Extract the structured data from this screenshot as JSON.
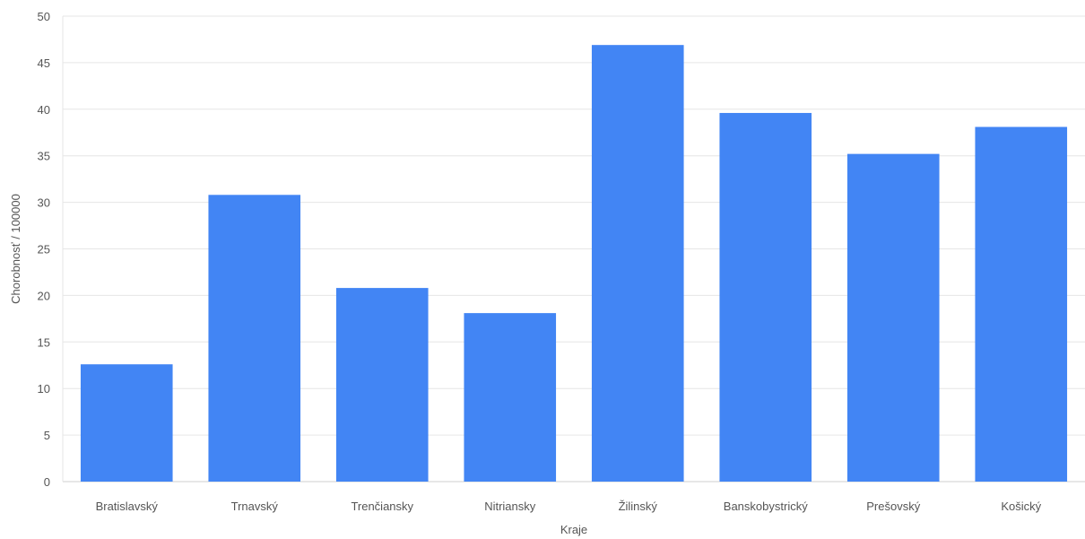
{
  "chart_data": {
    "type": "bar",
    "categories": [
      "Bratislavský",
      "Trnavský",
      "Trenčiansky",
      "Nitriansky",
      "Žilinský",
      "Banskobystrický",
      "Prešovský",
      "Košický"
    ],
    "values": [
      12.6,
      30.8,
      20.8,
      18.1,
      46.9,
      39.6,
      35.2,
      38.1
    ],
    "xlabel": "Kraje",
    "ylabel": "Chorobnosť / 100000",
    "ylim": [
      0,
      50
    ],
    "yticks": [
      0,
      5,
      10,
      15,
      20,
      25,
      30,
      35,
      40,
      45,
      50
    ],
    "grid": true,
    "bar_color": "#4285f4"
  }
}
